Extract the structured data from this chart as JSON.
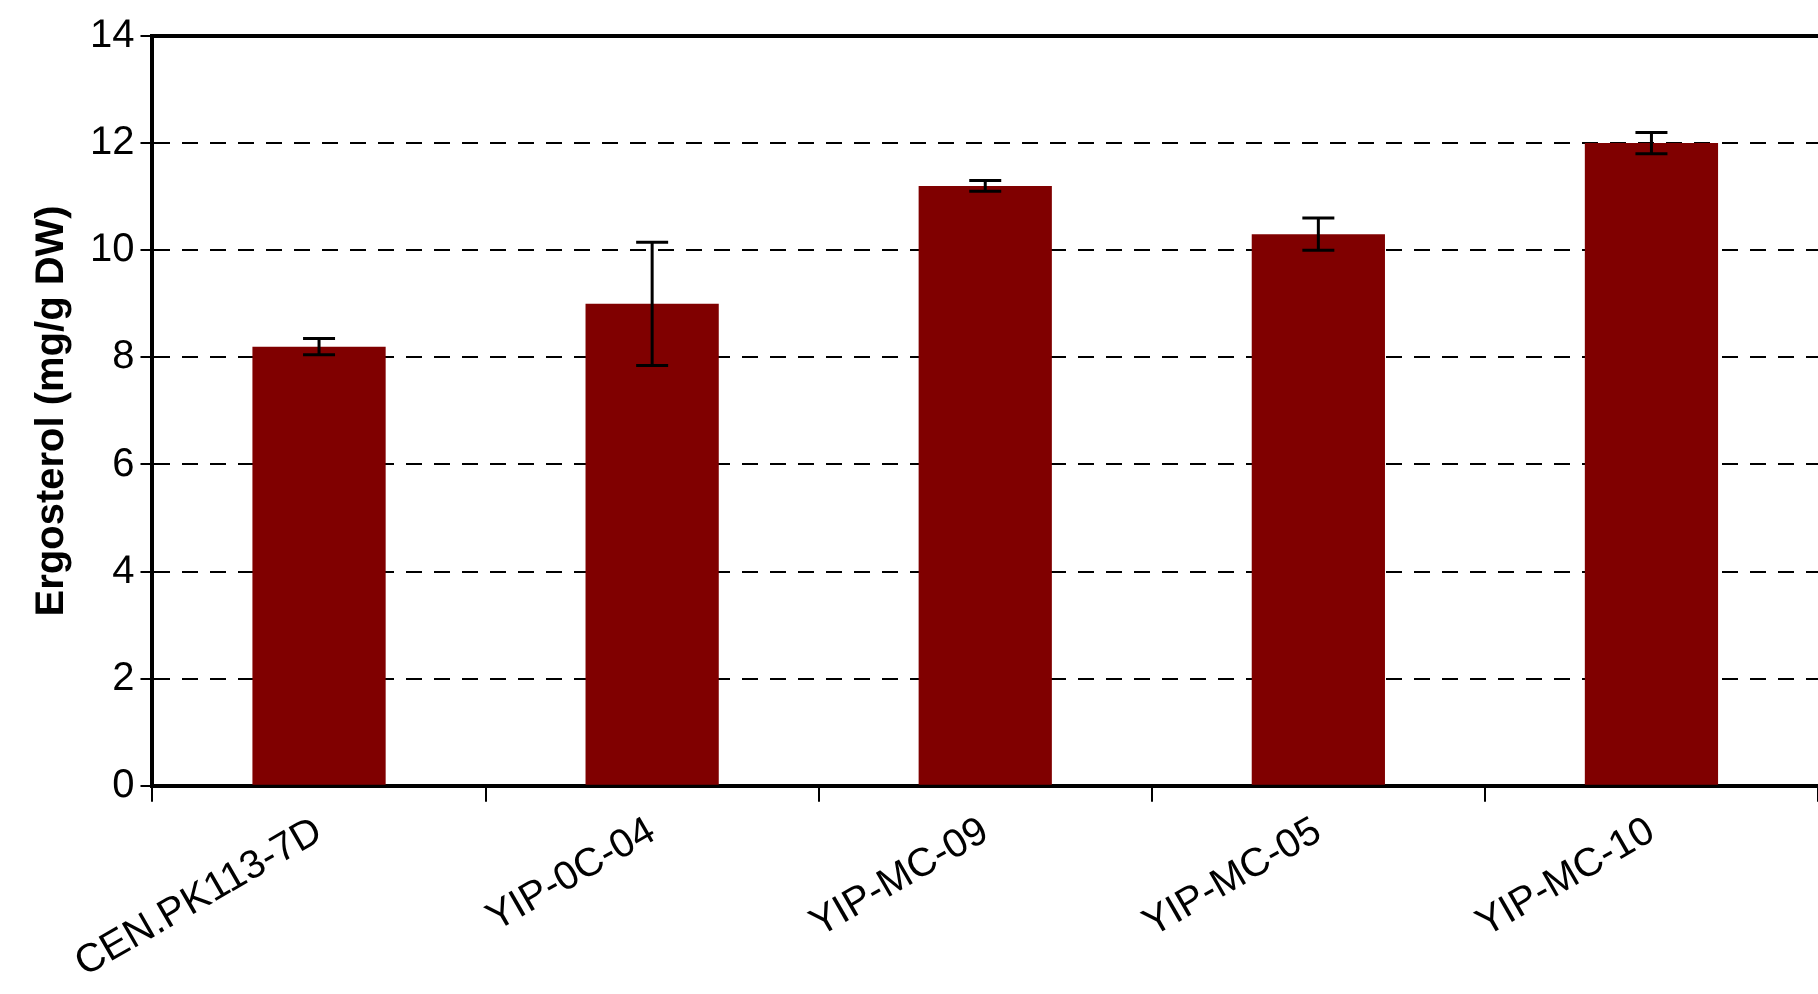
{
  "chart_data": {
    "type": "bar",
    "ylabel": "Ergosterol (mg/g DW)",
    "categories": [
      "CEN.PK113-7D",
      "YIP-0C-04",
      "YIP-MC-09",
      "YIP-MC-05",
      "YIP-MC-10"
    ],
    "values": [
      8.2,
      9.0,
      11.2,
      10.3,
      12.0
    ],
    "errors": [
      0.15,
      1.15,
      0.1,
      0.3,
      0.2
    ],
    "color": "#800000",
    "ylim": [
      0,
      14
    ],
    "yticks": [
      0,
      2,
      4,
      6,
      8,
      10,
      12,
      14
    ],
    "grid": "y"
  }
}
